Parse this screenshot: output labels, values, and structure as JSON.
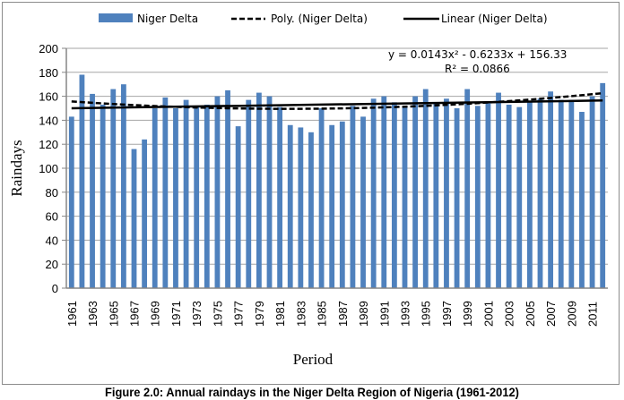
{
  "caption": "Figure 2.0: Annual raindays in the Niger Delta Region of Nigeria (1961-2012)",
  "chart_data": {
    "type": "bar",
    "title": "",
    "xlabel": "Period",
    "ylabel": "Raindays",
    "ylim": [
      0,
      200
    ],
    "yticks": [
      0,
      20,
      40,
      60,
      80,
      100,
      120,
      140,
      160,
      180,
      200
    ],
    "grid": true,
    "legend_placement": "top",
    "bar_color": "#4f81bd",
    "categories": [
      "1961",
      "1962",
      "1963",
      "1964",
      "1965",
      "1966",
      "1967",
      "1968",
      "1969",
      "1970",
      "1971",
      "1972",
      "1973",
      "1974",
      "1975",
      "1976",
      "1977",
      "1978",
      "1979",
      "1980",
      "1981",
      "1982",
      "1983",
      "1984",
      "1985",
      "1986",
      "1987",
      "1988",
      "1989",
      "1990",
      "1991",
      "1992",
      "1993",
      "1994",
      "1995",
      "1996",
      "1997",
      "1998",
      "1999",
      "2000",
      "2001",
      "2002",
      "2003",
      "2004",
      "2005",
      "2006",
      "2007",
      "2008",
      "2009",
      "2010",
      "2011",
      "2012"
    ],
    "xtick_labels": [
      "1961",
      "1963",
      "1965",
      "1967",
      "1969",
      "1971",
      "1973",
      "1975",
      "1977",
      "1979",
      "1981",
      "1983",
      "1985",
      "1987",
      "1989",
      "1991",
      "1993",
      "1995",
      "1997",
      "1999",
      "2001",
      "2003",
      "2005",
      "2007",
      "2009",
      "2011"
    ],
    "series": [
      {
        "name": "Niger Delta",
        "type": "bar",
        "values": [
          143,
          178,
          162,
          153,
          166,
          170,
          116,
          124,
          150,
          159,
          150,
          157,
          151,
          153,
          160,
          165,
          135,
          157,
          163,
          160,
          151,
          136,
          134,
          130,
          150,
          136,
          139,
          152,
          143,
          158,
          160,
          155,
          151,
          160,
          166,
          155,
          158,
          150,
          166,
          152,
          155,
          163,
          153,
          151,
          156,
          158,
          164,
          157,
          157,
          147,
          160,
          171
        ]
      },
      {
        "name": "Poly. (Niger Delta)",
        "type": "trendline-polynomial",
        "style": "dashed",
        "coefficients": {
          "a": 0.0143,
          "b": -0.6233,
          "c": 156.33
        }
      },
      {
        "name": "Linear (Niger Delta)",
        "type": "trendline-linear",
        "style": "solid",
        "start_value": 150,
        "end_value": 156.5
      }
    ],
    "legend": [
      "Niger Delta",
      "Poly. (Niger Delta)",
      "Linear (Niger Delta)"
    ],
    "annotations": [
      "y = 0.0143x² - 0.6233x + 156.33",
      "R² = 0.0866"
    ]
  }
}
